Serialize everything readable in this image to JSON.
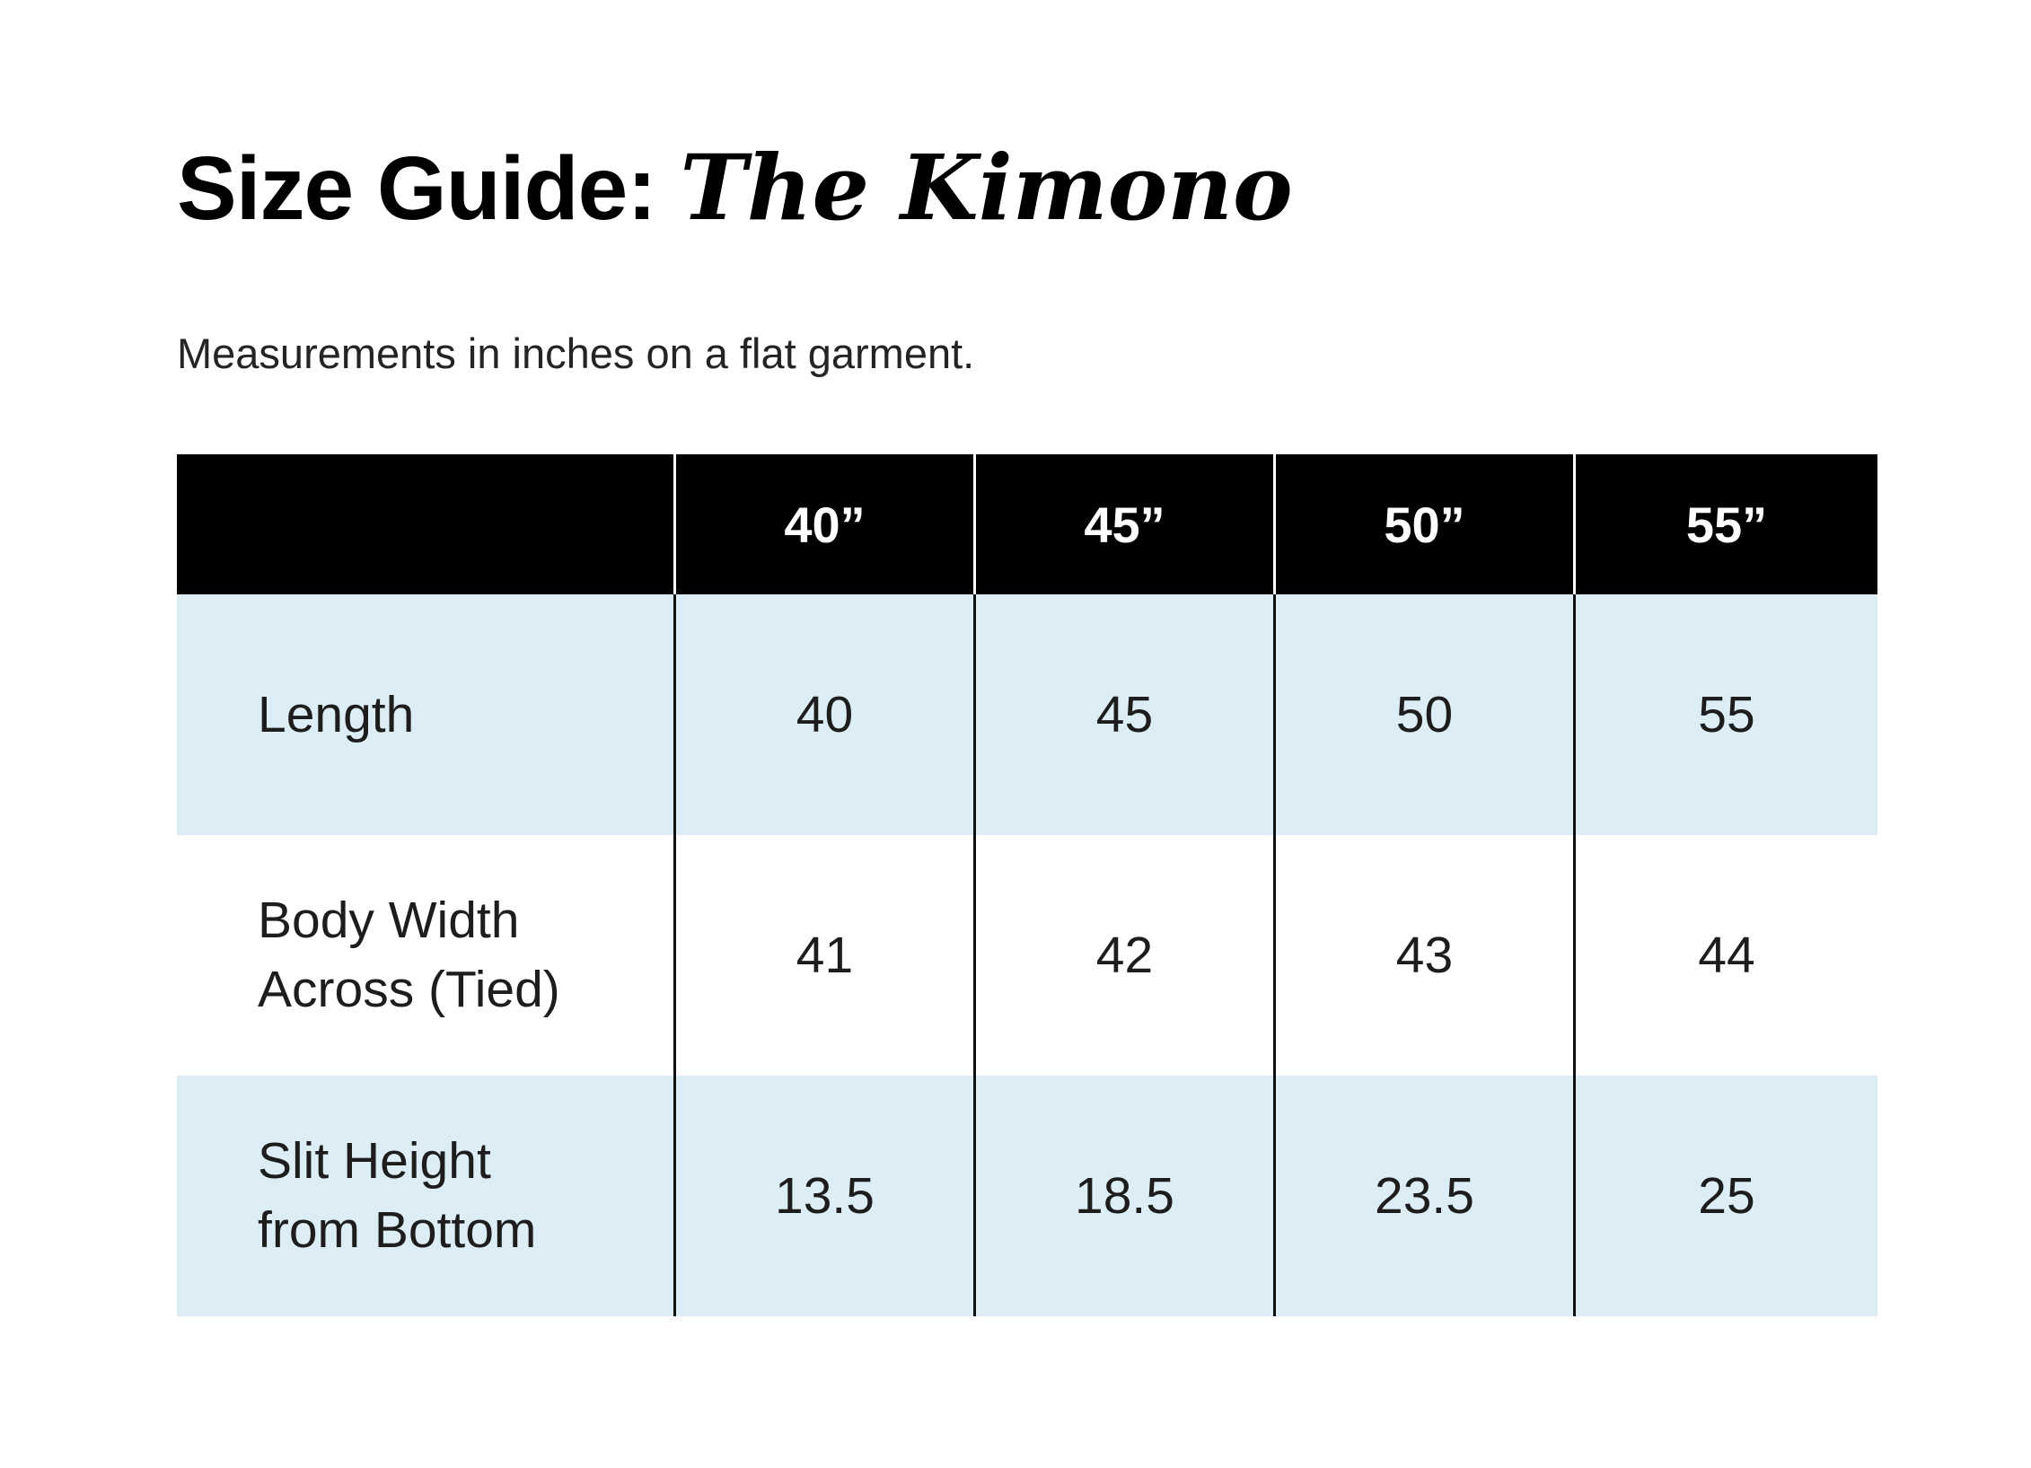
{
  "page": {
    "title_prefix": "Size Guide: ",
    "title_emphasis": "The Kimono",
    "subtitle": "Measurements in inches on a flat garment."
  },
  "table": {
    "corner_label": "",
    "column_headers": [
      "40”",
      "45”",
      "50”",
      "55”"
    ],
    "rows": [
      {
        "label": "Length",
        "values": [
          "40",
          "45",
          "50",
          "55"
        ]
      },
      {
        "label": "Body Width Across (Tied)",
        "values": [
          "41",
          "42",
          "43",
          "44"
        ]
      },
      {
        "label": "Slit Height from Bottom",
        "values": [
          "13.5",
          "18.5",
          "23.5",
          "25"
        ]
      }
    ]
  },
  "colors": {
    "header_bg": "#000000",
    "header_text": "#ffffff",
    "row_alt_bg": "#dcedf5",
    "row_bg": "#ffffff",
    "body_divider": "#101010",
    "header_divider": "#ffffff",
    "text": "#1d1d1d"
  }
}
